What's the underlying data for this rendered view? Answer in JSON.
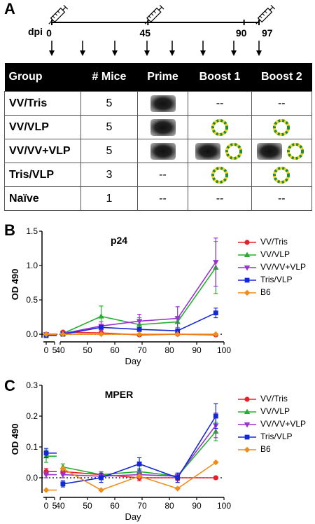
{
  "panels": {
    "a": "A",
    "b": "B",
    "c": "C"
  },
  "timeline": {
    "label": "dpi",
    "ticks": [
      "0",
      "45",
      "90",
      "97"
    ]
  },
  "table": {
    "headers": [
      "Group",
      "# Mice",
      "Prime",
      "Boost 1",
      "Boost 2"
    ],
    "rows": [
      {
        "group": "VV/Tris",
        "mice": "5",
        "prime": [
          "VV"
        ],
        "boost1": "--",
        "boost2": "--"
      },
      {
        "group": "VV/VLP",
        "mice": "5",
        "prime": [
          "VV"
        ],
        "boost1": [
          "VLP"
        ],
        "boost2": [
          "VLP"
        ]
      },
      {
        "group": "VV/VV+VLP",
        "mice": "5",
        "prime": [
          "VV"
        ],
        "boost1": [
          "VV",
          "VLP"
        ],
        "boost2": [
          "VV",
          "VLP"
        ]
      },
      {
        "group": "Tris/VLP",
        "mice": "3",
        "prime": "--",
        "boost1": [
          "VLP"
        ],
        "boost2": [
          "VLP"
        ]
      },
      {
        "group": "Naïve",
        "mice": "1",
        "prime": "--",
        "boost1": "--",
        "boost2": "--"
      }
    ]
  },
  "colors": {
    "VV/Tris": "#e8202a",
    "VV/VLP": "#23b02e",
    "VV/VV+VLP": "#9a32d0",
    "Tris/VLP": "#1428d8",
    "B6": "#f08c1a"
  },
  "chart_data": [
    {
      "type": "line",
      "title": "p24",
      "xlabel": "Day",
      "ylabel": "OD 490",
      "xlim": [
        0,
        100
      ],
      "ylim": [
        -0.05,
        1.5
      ],
      "yticks": [
        "0.0",
        "0.5",
        "1.0",
        "1.5"
      ],
      "xticks": [
        "0",
        "5",
        "40",
        "50",
        "60",
        "70",
        "80",
        "90",
        "100"
      ],
      "legend_position": "right",
      "series": [
        {
          "name": "VV/Tris",
          "x": [
            0,
            41,
            55,
            69,
            83,
            97
          ],
          "y": [
            0.0,
            0.03,
            0.02,
            -0.01,
            0.0,
            -0.01
          ],
          "err": [
            0.01,
            0.01,
            0.01,
            0.01,
            0.01,
            0.01
          ],
          "marker": "circle"
        },
        {
          "name": "VV/VLP",
          "x": [
            0,
            41,
            55,
            69,
            83,
            97
          ],
          "y": [
            0.0,
            0.01,
            0.26,
            0.14,
            0.18,
            0.97
          ],
          "err": [
            0.01,
            0.01,
            0.15,
            0.1,
            0.08,
            0.38
          ],
          "marker": "triangle"
        },
        {
          "name": "VV/VV+VLP",
          "x": [
            0,
            41,
            55,
            69,
            83,
            97
          ],
          "y": [
            0.0,
            0.01,
            0.12,
            0.19,
            0.23,
            1.05
          ],
          "err": [
            0.01,
            0.01,
            0.06,
            0.1,
            0.17,
            0.35
          ],
          "marker": "triangle-down"
        },
        {
          "name": "Tris/VLP",
          "x": [
            0,
            41,
            55,
            69,
            83,
            97
          ],
          "y": [
            -0.02,
            0.0,
            0.1,
            0.07,
            0.05,
            0.31
          ],
          "err": [
            0.01,
            0.01,
            0.02,
            0.02,
            0.02,
            0.07
          ],
          "marker": "square"
        },
        {
          "name": "B6",
          "x": [
            0,
            41,
            55,
            69,
            83,
            97
          ],
          "y": [
            0.0,
            0.0,
            0.0,
            0.0,
            0.0,
            0.0
          ],
          "err": [
            0,
            0,
            0,
            0,
            0,
            0
          ],
          "marker": "diamond"
        }
      ]
    },
    {
      "type": "line",
      "title": "MPER",
      "xlabel": "Day",
      "ylabel": "OD 490",
      "xlim": [
        0,
        100
      ],
      "ylim": [
        -0.05,
        0.3
      ],
      "yticks": [
        "0.0",
        "0.1",
        "0.2",
        "0.3"
      ],
      "xticks": [
        "0",
        "5",
        "40",
        "50",
        "60",
        "70",
        "80",
        "90",
        "100"
      ],
      "legend_position": "right",
      "series": [
        {
          "name": "VV/Tris",
          "x": [
            0,
            41,
            55,
            69,
            83,
            97
          ],
          "y": [
            0.02,
            0.02,
            0.01,
            0.0,
            0.0,
            0.0
          ],
          "err": [
            0.01,
            0.01,
            0.01,
            0.01,
            0.01,
            0.005
          ],
          "marker": "circle"
        },
        {
          "name": "VV/VLP",
          "x": [
            0,
            41,
            55,
            69,
            83,
            97
          ],
          "y": [
            0.07,
            0.035,
            0.01,
            0.02,
            0.005,
            0.15
          ],
          "err": [
            0.02,
            0.01,
            0.01,
            0.01,
            0.01,
            0.03
          ],
          "marker": "triangle"
        },
        {
          "name": "VV/VV+VLP",
          "x": [
            0,
            41,
            55,
            69,
            83,
            97
          ],
          "y": [
            0.01,
            0.01,
            0.005,
            0.01,
            0.005,
            0.17
          ],
          "err": [
            0.01,
            0.01,
            0.01,
            0.01,
            0.01,
            0.04
          ],
          "marker": "triangle-down"
        },
        {
          "name": "Tris/VLP",
          "x": [
            0,
            41,
            55,
            69,
            83,
            97
          ],
          "y": [
            0.08,
            -0.02,
            0.0,
            0.045,
            0.0,
            0.2
          ],
          "err": [
            0.015,
            0.01,
            0.015,
            0.02,
            0.015,
            0.04
          ],
          "marker": "square"
        },
        {
          "name": "B6",
          "x": [
            0,
            41,
            55,
            69,
            83,
            97
          ],
          "y": [
            -0.04,
            0.03,
            -0.04,
            0.005,
            -0.035,
            0.05
          ],
          "err": [
            0,
            0,
            0,
            0,
            0,
            0
          ],
          "marker": "diamond"
        }
      ]
    }
  ]
}
